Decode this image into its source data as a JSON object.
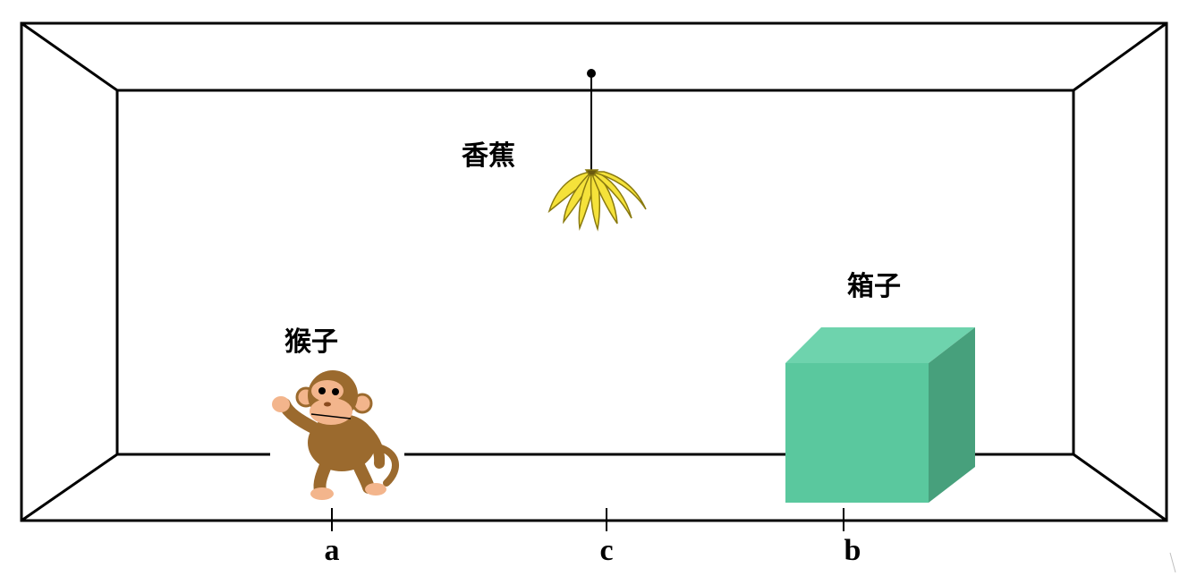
{
  "labels": {
    "banana": "香蕉",
    "box": "箱子",
    "monkey": "猴子"
  },
  "positions": {
    "a": "a",
    "c": "c",
    "b": "b"
  },
  "colors": {
    "line": "#000000",
    "banana": "#f5e23a",
    "banana_outline": "#8a7a10",
    "box_front": "#5ac89e",
    "box_top": "#6ed3ad",
    "box_side": "#47a07c",
    "monkey_fur": "#9b6a2e",
    "monkey_face": "#f3b58c"
  },
  "icons": {
    "monkey": "monkey-icon",
    "banana": "banana-bunch-icon",
    "box": "box-icon",
    "hook": "ceiling-hook-icon"
  }
}
